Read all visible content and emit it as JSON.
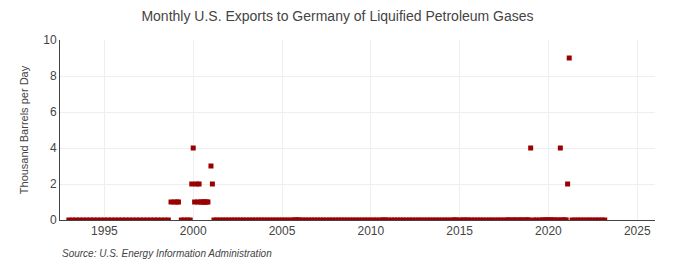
{
  "chart_data": {
    "type": "scatter",
    "title": "Monthly U.S. Exports to Germany of Liquified Petroleum Gases",
    "ylabel": "Thousand Barrels per Day",
    "annotations": [
      "Source: U.S. Energy Information Administration"
    ],
    "color": "#990000",
    "marker": "square",
    "grid": true,
    "xlim": [
      1992.5,
      2026
    ],
    "ylim": [
      0,
      10
    ],
    "xticks": [
      1995,
      2000,
      2005,
      2010,
      2015,
      2020,
      2025
    ],
    "yticks": [
      0,
      2,
      4,
      6,
      8,
      10
    ],
    "x": [
      1993.0,
      1993.2,
      1993.4,
      1993.6,
      1993.8,
      1994.0,
      1994.2,
      1994.4,
      1994.6,
      1994.8,
      1995.0,
      1995.2,
      1995.4,
      1995.6,
      1995.8,
      1996.0,
      1996.2,
      1996.4,
      1996.6,
      1996.8,
      1997.0,
      1997.2,
      1997.4,
      1997.6,
      1997.8,
      1998.0,
      1998.2,
      1998.4,
      1998.6,
      1998.75,
      1998.92,
      1999.08,
      1999.17,
      1999.33,
      1999.5,
      1999.67,
      1999.83,
      1999.92,
      2000.0,
      2000.08,
      2000.17,
      2000.25,
      2000.33,
      2000.42,
      2000.5,
      2000.58,
      2000.67,
      2000.75,
      2000.83,
      2001.0,
      2001.08,
      2001.17,
      2001.33,
      2001.5,
      2001.67,
      2001.83,
      2002.0,
      2002.17,
      2002.33,
      2002.5,
      2002.67,
      2002.83,
      2003.0,
      2003.17,
      2003.33,
      2003.5,
      2003.67,
      2003.83,
      2004.0,
      2004.17,
      2004.33,
      2004.5,
      2004.67,
      2004.83,
      2005.0,
      2005.17,
      2005.33,
      2005.5,
      2005.67,
      2005.75,
      2005.83,
      2005.92,
      2006.0,
      2006.17,
      2006.33,
      2006.5,
      2006.67,
      2006.83,
      2007.0,
      2007.17,
      2007.33,
      2007.5,
      2007.67,
      2007.83,
      2008.0,
      2008.17,
      2008.33,
      2008.5,
      2008.67,
      2008.83,
      2009.0,
      2009.17,
      2009.33,
      2009.5,
      2009.67,
      2009.83,
      2010.0,
      2010.17,
      2010.33,
      2010.5,
      2010.67,
      2010.75,
      2010.83,
      2011.0,
      2011.17,
      2011.33,
      2011.5,
      2011.67,
      2011.83,
      2012.0,
      2012.17,
      2012.33,
      2012.5,
      2012.67,
      2012.83,
      2013.0,
      2013.17,
      2013.33,
      2013.5,
      2013.67,
      2013.83,
      2014.0,
      2014.17,
      2014.33,
      2014.5,
      2014.67,
      2014.75,
      2014.83,
      2015.0,
      2015.17,
      2015.25,
      2015.42,
      2015.5,
      2015.67,
      2015.83,
      2016.0,
      2016.17,
      2016.33,
      2016.5,
      2016.67,
      2016.83,
      2017.0,
      2017.17,
      2017.33,
      2017.5,
      2017.67,
      2017.75,
      2017.83,
      2018.0,
      2018.08,
      2018.17,
      2018.33,
      2018.42,
      2018.5,
      2018.67,
      2018.75,
      2018.83,
      2018.92,
      2019.0,
      2019.17,
      2019.33,
      2019.5,
      2019.67,
      2019.75,
      2019.83,
      2019.92,
      2020.0,
      2020.08,
      2020.17,
      2020.25,
      2020.33,
      2020.5,
      2020.58,
      2020.67,
      2020.75,
      2020.83,
      2020.92,
      2021.0,
      2021.08,
      2021.17,
      2021.33,
      2021.5,
      2021.67,
      2021.83,
      2022.0,
      2022.17,
      2022.33,
      2022.5,
      2022.67,
      2022.83,
      2023.0,
      2023.17
    ],
    "values": [
      0.0,
      0.0,
      0.0,
      0.0,
      0.0,
      0.0,
      0.0,
      0.0,
      0.0,
      0.0,
      0.0,
      0.0,
      0.0,
      0.0,
      0.0,
      0.0,
      0.0,
      0.0,
      0.0,
      0.0,
      0.0,
      0.0,
      0.0,
      0.0,
      0.0,
      0.0,
      0.0,
      0.0,
      0.0,
      1.0,
      1.0,
      1.0,
      1.0,
      0.0,
      0.0,
      0.0,
      0.0,
      2.0,
      4.0,
      1.0,
      2.0,
      1.0,
      2.0,
      1.0,
      1.0,
      1.0,
      1.0,
      1.0,
      1.0,
      3.0,
      2.0,
      0.0,
      0.0,
      0.0,
      0.0,
      0.0,
      0.0,
      0.0,
      0.0,
      0.0,
      0.0,
      0.0,
      0.0,
      0.0,
      0.0,
      0.0,
      0.0,
      0.0,
      0.0,
      0.0,
      0.0,
      0.0,
      0.0,
      0.0,
      0.0,
      0.0,
      0.0,
      0.0,
      0.0,
      0.0,
      0.0,
      0.0,
      0.0,
      0.0,
      0.0,
      0.0,
      0.0,
      0.0,
      0.0,
      0.0,
      0.0,
      0.0,
      0.0,
      0.0,
      0.0,
      0.0,
      0.0,
      0.0,
      0.0,
      0.0,
      0.0,
      0.0,
      0.0,
      0.0,
      0.0,
      0.0,
      0.0,
      0.0,
      0.0,
      0.0,
      0.0,
      0.0,
      0.0,
      0.0,
      0.0,
      0.0,
      0.0,
      0.0,
      0.0,
      0.0,
      0.0,
      0.0,
      0.0,
      0.0,
      0.0,
      0.0,
      0.0,
      0.0,
      0.0,
      0.0,
      0.0,
      0.0,
      0.0,
      0.0,
      0.0,
      0.0,
      0.0,
      0.0,
      0.0,
      0.0,
      0.0,
      0.0,
      0.0,
      0.0,
      0.0,
      0.0,
      0.0,
      0.0,
      0.0,
      0.0,
      0.0,
      0.0,
      0.0,
      0.0,
      0.0,
      0.0,
      0.0,
      0.0,
      0.0,
      0.0,
      0.0,
      0.0,
      0.0,
      0.0,
      0.0,
      0.0,
      0.0,
      0.0,
      4.0,
      0.0,
      0.0,
      0.0,
      0.0,
      0.0,
      0.0,
      0.0,
      0.0,
      0.0,
      0.0,
      0.0,
      0.0,
      0.0,
      0.0,
      4.0,
      0.0,
      0.0,
      0.0,
      0.0,
      2.0,
      9.0,
      0.0,
      0.0,
      0.0,
      0.0,
      0.0,
      0.0,
      0.0,
      0.0,
      0.0,
      0.0,
      0.0,
      0.0
    ]
  }
}
